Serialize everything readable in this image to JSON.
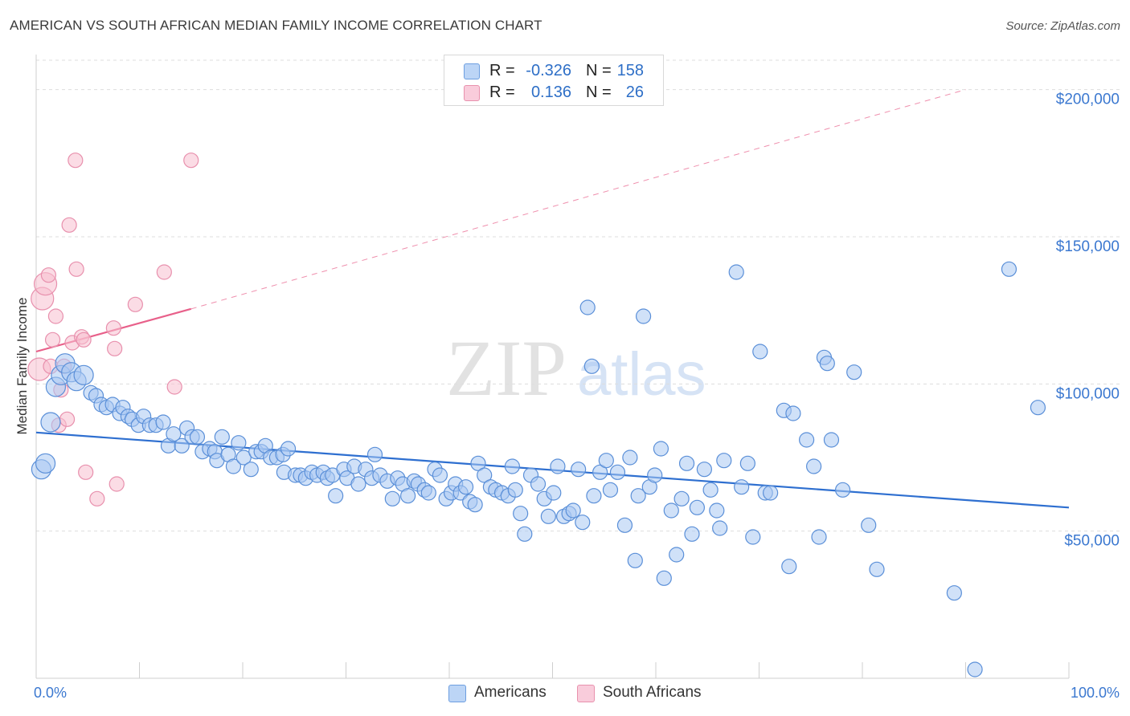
{
  "title": "AMERICAN VS SOUTH AFRICAN MEDIAN FAMILY INCOME CORRELATION CHART",
  "source": "Source: ZipAtlas.com",
  "watermark": {
    "zip": "ZIP",
    "atlas": "atlas"
  },
  "colors": {
    "americans_fill": "#a9c8f2",
    "americans_stroke": "#5a8fd8",
    "americans_line": "#2e6fd0",
    "south_africans_fill": "#f7bfd0",
    "south_africans_stroke": "#e890ad",
    "south_africans_line": "#e8608a",
    "axis_text": "#3b78d0",
    "grid": "#dddddd"
  },
  "stats": [
    {
      "r_label": "R =",
      "r_value": "-0.326",
      "n_label": "N =",
      "n_value": "158"
    },
    {
      "r_label": "R =",
      "r_value": "0.136",
      "n_label": "N =",
      "n_value": "26"
    }
  ],
  "legend": [
    "Americans",
    "South Africans"
  ],
  "chart_data": {
    "type": "scatter",
    "title": "AMERICAN VS SOUTH AFRICAN MEDIAN FAMILY INCOME CORRELATION CHART",
    "xlabel": "",
    "ylabel": "Median Family Income",
    "xlim": [
      0,
      100
    ],
    "ylim": [
      0,
      210000
    ],
    "x_tick_labels": [
      "0.0%",
      "100.0%"
    ],
    "y_ticks": [
      50000,
      100000,
      150000,
      200000
    ],
    "y_tick_labels": [
      "$50,000",
      "$100,000",
      "$150,000",
      "$200,000"
    ],
    "grid": true,
    "legend_position": "bottom",
    "series": [
      {
        "name": "Americans",
        "points": [
          [
            0.5,
            71000
          ],
          [
            0.9,
            73000
          ],
          [
            1.4,
            87000
          ],
          [
            1.9,
            99000
          ],
          [
            2.4,
            103000
          ],
          [
            2.8,
            107000
          ],
          [
            3.4,
            104000
          ],
          [
            3.9,
            101000
          ],
          [
            4.6,
            103000
          ],
          [
            5.3,
            97000
          ],
          [
            5.8,
            96000
          ],
          [
            6.3,
            93000
          ],
          [
            6.8,
            92000
          ],
          [
            7.4,
            93000
          ],
          [
            8.1,
            90000
          ],
          [
            8.4,
            92000
          ],
          [
            8.9,
            89000
          ],
          [
            9.3,
            88000
          ],
          [
            9.9,
            86000
          ],
          [
            10.4,
            89000
          ],
          [
            11.0,
            86000
          ],
          [
            11.6,
            86000
          ],
          [
            12.3,
            87000
          ],
          [
            12.8,
            79000
          ],
          [
            13.3,
            83000
          ],
          [
            14.1,
            79000
          ],
          [
            14.6,
            85000
          ],
          [
            15.1,
            82000
          ],
          [
            15.6,
            82000
          ],
          [
            16.1,
            77000
          ],
          [
            16.8,
            78000
          ],
          [
            17.3,
            77000
          ],
          [
            17.5,
            74000
          ],
          [
            18.0,
            82000
          ],
          [
            18.6,
            76000
          ],
          [
            19.1,
            72000
          ],
          [
            19.6,
            80000
          ],
          [
            20.1,
            75000
          ],
          [
            20.8,
            71000
          ],
          [
            21.3,
            77000
          ],
          [
            21.8,
            77000
          ],
          [
            22.2,
            79000
          ],
          [
            22.7,
            75000
          ],
          [
            23.3,
            75000
          ],
          [
            23.9,
            76000
          ],
          [
            24.4,
            78000
          ],
          [
            24.0,
            70000
          ],
          [
            25.1,
            69000
          ],
          [
            25.6,
            69000
          ],
          [
            26.1,
            68000
          ],
          [
            26.7,
            70000
          ],
          [
            27.2,
            69000
          ],
          [
            27.8,
            70000
          ],
          [
            28.2,
            68000
          ],
          [
            28.7,
            69000
          ],
          [
            29.0,
            62000
          ],
          [
            29.8,
            71000
          ],
          [
            30.1,
            68000
          ],
          [
            30.8,
            72000
          ],
          [
            31.2,
            66000
          ],
          [
            31.9,
            71000
          ],
          [
            32.5,
            68000
          ],
          [
            32.8,
            76000
          ],
          [
            33.3,
            69000
          ],
          [
            34.0,
            67000
          ],
          [
            34.5,
            61000
          ],
          [
            35.0,
            68000
          ],
          [
            35.5,
            66000
          ],
          [
            36.0,
            62000
          ],
          [
            36.6,
            67000
          ],
          [
            37.0,
            66000
          ],
          [
            37.6,
            64000
          ],
          [
            38.0,
            63000
          ],
          [
            38.6,
            71000
          ],
          [
            39.1,
            69000
          ],
          [
            39.7,
            61000
          ],
          [
            40.2,
            63000
          ],
          [
            40.6,
            66000
          ],
          [
            41.1,
            63000
          ],
          [
            41.6,
            65000
          ],
          [
            42.0,
            60000
          ],
          [
            42.5,
            59000
          ],
          [
            42.8,
            73000
          ],
          [
            43.4,
            69000
          ],
          [
            44.0,
            65000
          ],
          [
            44.5,
            64000
          ],
          [
            45.1,
            63000
          ],
          [
            45.7,
            62000
          ],
          [
            46.1,
            72000
          ],
          [
            46.4,
            64000
          ],
          [
            46.9,
            56000
          ],
          [
            47.3,
            49000
          ],
          [
            47.9,
            69000
          ],
          [
            48.6,
            66000
          ],
          [
            49.2,
            61000
          ],
          [
            49.6,
            55000
          ],
          [
            50.1,
            63000
          ],
          [
            50.5,
            72000
          ],
          [
            51.1,
            55000
          ],
          [
            51.6,
            56000
          ],
          [
            52.0,
            57000
          ],
          [
            52.5,
            71000
          ],
          [
            52.9,
            53000
          ],
          [
            53.4,
            126000
          ],
          [
            53.8,
            106000
          ],
          [
            54.0,
            62000
          ],
          [
            54.6,
            70000
          ],
          [
            55.2,
            74000
          ],
          [
            55.6,
            64000
          ],
          [
            56.3,
            70000
          ],
          [
            57.0,
            52000
          ],
          [
            57.5,
            75000
          ],
          [
            58.0,
            40000
          ],
          [
            58.3,
            62000
          ],
          [
            58.8,
            123000
          ],
          [
            59.4,
            65000
          ],
          [
            59.9,
            69000
          ],
          [
            60.5,
            78000
          ],
          [
            60.8,
            34000
          ],
          [
            61.5,
            57000
          ],
          [
            62.0,
            42000
          ],
          [
            62.5,
            61000
          ],
          [
            63.0,
            73000
          ],
          [
            63.5,
            49000
          ],
          [
            64.0,
            58000
          ],
          [
            64.7,
            71000
          ],
          [
            65.3,
            64000
          ],
          [
            65.9,
            57000
          ],
          [
            66.6,
            74000
          ],
          [
            66.2,
            51000
          ],
          [
            67.8,
            138000
          ],
          [
            68.3,
            65000
          ],
          [
            68.9,
            73000
          ],
          [
            69.4,
            48000
          ],
          [
            70.1,
            111000
          ],
          [
            70.6,
            63000
          ],
          [
            71.1,
            63000
          ],
          [
            72.4,
            91000
          ],
          [
            72.9,
            38000
          ],
          [
            73.3,
            90000
          ],
          [
            74.6,
            81000
          ],
          [
            75.3,
            72000
          ],
          [
            75.8,
            48000
          ],
          [
            76.3,
            109000
          ],
          [
            76.6,
            107000
          ],
          [
            77.0,
            81000
          ],
          [
            78.1,
            64000
          ],
          [
            79.2,
            104000
          ],
          [
            80.6,
            52000
          ],
          [
            81.4,
            37000
          ],
          [
            88.9,
            29000
          ],
          [
            90.9,
            3000
          ],
          [
            94.2,
            139000
          ],
          [
            97.0,
            92000
          ]
        ]
      },
      {
        "name": "South Africans",
        "points": [
          [
            0.3,
            105000
          ],
          [
            0.6,
            129000
          ],
          [
            0.9,
            134000
          ],
          [
            1.2,
            137000
          ],
          [
            1.4,
            106000
          ],
          [
            1.6,
            115000
          ],
          [
            1.9,
            123000
          ],
          [
            2.2,
            86000
          ],
          [
            2.4,
            98000
          ],
          [
            2.7,
            106000
          ],
          [
            3.0,
            88000
          ],
          [
            3.2,
            154000
          ],
          [
            3.5,
            114000
          ],
          [
            3.8,
            176000
          ],
          [
            3.9,
            139000
          ],
          [
            4.4,
            116000
          ],
          [
            4.6,
            115000
          ],
          [
            4.8,
            70000
          ],
          [
            5.9,
            61000
          ],
          [
            7.5,
            119000
          ],
          [
            7.6,
            112000
          ],
          [
            7.8,
            66000
          ],
          [
            9.6,
            127000
          ],
          [
            12.4,
            138000
          ],
          [
            13.4,
            99000
          ],
          [
            15.0,
            176000
          ]
        ]
      }
    ],
    "trend_lines": [
      {
        "series": "Americans",
        "x": [
          0,
          100
        ],
        "y": [
          83500,
          58000
        ],
        "style": "solid"
      },
      {
        "series": "South Africans",
        "x": [
          0,
          15
        ],
        "y": [
          111000,
          125500
        ],
        "style": "solid"
      },
      {
        "series": "South Africans",
        "x": [
          15,
          90
        ],
        "y": [
          125500,
          200000
        ],
        "style": "dashed"
      }
    ]
  }
}
